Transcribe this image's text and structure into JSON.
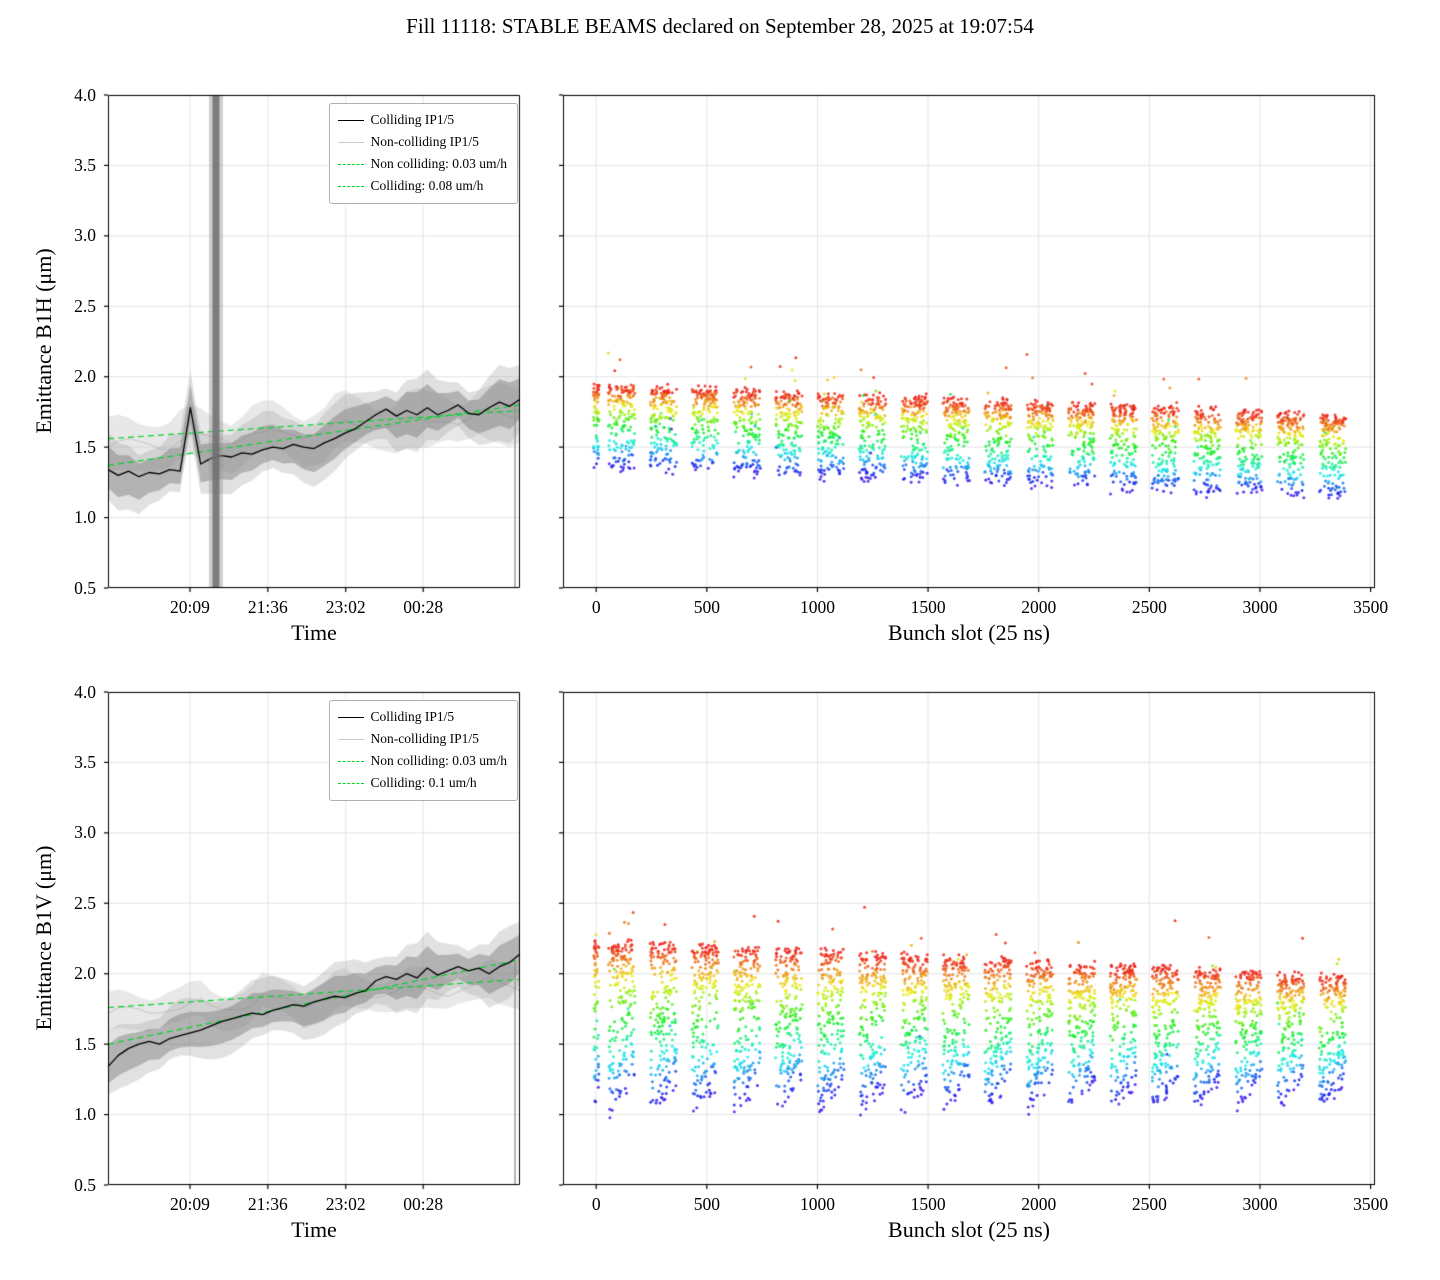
{
  "title": "Fill 11118: STABLE BEAMS declared on September 28, 2025 at 19:07:54",
  "colors": {
    "trend_green": "#00d42a",
    "colliding_line": "#000000",
    "noncolliding_line": "#c9c9c9",
    "band_dark": "rgba(115,115,115,0.42)",
    "band_light": "rgba(190,190,190,0.35)"
  },
  "chart_data": [
    {
      "id": "emittance-b1h-vs-time",
      "type": "line",
      "ylabel": "Emittance B1H (μm)",
      "xlabel": "Time",
      "ylim": [
        0.5,
        4.0
      ],
      "yticks": [
        0.5,
        1.0,
        1.5,
        2.0,
        2.5,
        3.0,
        3.5,
        4.0
      ],
      "xticks": {
        "labels": [
          "20:09",
          "21:36",
          "23:02",
          "00:28"
        ],
        "fractions": [
          0.199,
          0.388,
          0.577,
          0.765
        ]
      },
      "legend": [
        {
          "label": "Colliding IP1/5",
          "style": "solid",
          "color": "#000000"
        },
        {
          "label": "Non-colliding IP1/5",
          "style": "solid",
          "color": "#c9c9c9"
        },
        {
          "label": "Non colliding: 0.03 um/h",
          "style": "dashed",
          "color": "#00d42a"
        },
        {
          "label": "Colliding: 0.08 um/h",
          "style": "dashed",
          "color": "#00d42a"
        }
      ],
      "colliding_y": [
        1.34,
        1.3,
        1.33,
        1.29,
        1.32,
        1.31,
        1.34,
        1.33,
        1.78,
        1.38,
        1.42,
        1.44,
        1.43,
        1.46,
        1.45,
        1.48,
        1.5,
        1.49,
        1.52,
        1.5,
        1.49,
        1.53,
        1.56,
        1.6,
        1.63,
        1.68,
        1.73,
        1.77,
        1.72,
        1.76,
        1.73,
        1.78,
        1.73,
        1.76,
        1.8,
        1.74,
        1.73,
        1.78,
        1.82,
        1.79,
        1.84
      ],
      "colliding_band": 0.13,
      "noncolliding": {
        "y0": 1.5,
        "y1": 1.74,
        "band": 0.17
      },
      "trend_noncolliding": {
        "y0": 1.56,
        "y1": 1.76,
        "rate": "0.03 um/h"
      },
      "trend_colliding": {
        "y0": 1.37,
        "y1": 1.8,
        "rate": "0.08 um/h"
      },
      "trend_color": "#00d42a",
      "artifact_band_x": 0.262,
      "artifact_line_x": 0.988,
      "seed": 11
    },
    {
      "id": "emittance-b1h-vs-bunch-slot",
      "type": "scatter",
      "xlabel": "Bunch slot (25 ns)",
      "xlim": [
        -150,
        3520
      ],
      "ylim": [
        0.5,
        4.0
      ],
      "xticks": [
        0,
        500,
        1000,
        1500,
        2000,
        2500,
        3000,
        3500
      ],
      "yticks": [
        0.5,
        1.0,
        1.5,
        2.0,
        2.5,
        3.0,
        3.5,
        4.0
      ],
      "trains": {
        "count": 18,
        "first_start": 55,
        "spacing": 189,
        "width": 120,
        "points_per_train": 170
      },
      "envelope": {
        "top_start": 1.93,
        "top_end": 1.72,
        "bottom_start": 1.31,
        "bottom_end": 1.1
      },
      "intra_slope": 0.0,
      "lead_train": true,
      "colormap": "rainbow",
      "seed": 7
    },
    {
      "id": "emittance-b1v-vs-time",
      "type": "line",
      "ylabel": "Emittance B1V (μm)",
      "xlabel": "Time",
      "ylim": [
        0.5,
        4.0
      ],
      "yticks": [
        0.5,
        1.0,
        1.5,
        2.0,
        2.5,
        3.0,
        3.5,
        4.0
      ],
      "xticks": {
        "labels": [
          "20:09",
          "21:36",
          "23:02",
          "00:28"
        ],
        "fractions": [
          0.199,
          0.388,
          0.577,
          0.765
        ]
      },
      "legend": [
        {
          "label": "Colliding IP1/5",
          "style": "solid",
          "color": "#000000"
        },
        {
          "label": "Non-colliding IP1/5",
          "style": "solid",
          "color": "#c9c9c9"
        },
        {
          "label": "Non colliding: 0.03 um/h",
          "style": "dashed",
          "color": "#00d42a"
        },
        {
          "label": "Colliding: 0.1 um/h",
          "style": "dashed",
          "color": "#00d42a"
        }
      ],
      "colliding_y": [
        1.34,
        1.42,
        1.47,
        1.5,
        1.52,
        1.5,
        1.54,
        1.56,
        1.58,
        1.6,
        1.63,
        1.66,
        1.68,
        1.7,
        1.72,
        1.71,
        1.74,
        1.76,
        1.78,
        1.77,
        1.8,
        1.82,
        1.84,
        1.83,
        1.86,
        1.88,
        1.95,
        1.98,
        1.96,
        2.0,
        1.97,
        2.04,
        1.99,
        2.02,
        2.05,
        2.02,
        2.04,
        2.0,
        2.05,
        2.08,
        2.14
      ],
      "colliding_band": 0.12,
      "noncolliding": {
        "y0": 1.72,
        "y1": 1.93,
        "band": 0.12
      },
      "trend_noncolliding": {
        "y0": 1.76,
        "y1": 1.96,
        "rate": "0.03 um/h"
      },
      "trend_colliding": {
        "y0": 1.5,
        "y1": 2.1,
        "rate": "0.1 um/h"
      },
      "trend_color": "#00d42a",
      "artifact_band_x": null,
      "artifact_line_x": 0.988,
      "seed": 21
    },
    {
      "id": "emittance-b1v-vs-bunch-slot",
      "type": "scatter",
      "xlabel": "Bunch slot (25 ns)",
      "xlim": [
        -150,
        3520
      ],
      "ylim": [
        0.5,
        4.0
      ],
      "xticks": [
        0,
        500,
        1000,
        1500,
        2000,
        2500,
        3000,
        3500
      ],
      "yticks": [
        0.5,
        1.0,
        1.5,
        2.0,
        2.5,
        3.0,
        3.5,
        4.0
      ],
      "trains": {
        "count": 18,
        "first_start": 55,
        "spacing": 189,
        "width": 120,
        "points_per_train": 200
      },
      "envelope": {
        "top_start": 2.22,
        "top_end": 1.98,
        "bottom_start": 1.02,
        "bottom_end": 1.08
      },
      "intra_slope": 0.22,
      "lead_train": true,
      "colormap": "rainbow",
      "seed": 13
    }
  ]
}
